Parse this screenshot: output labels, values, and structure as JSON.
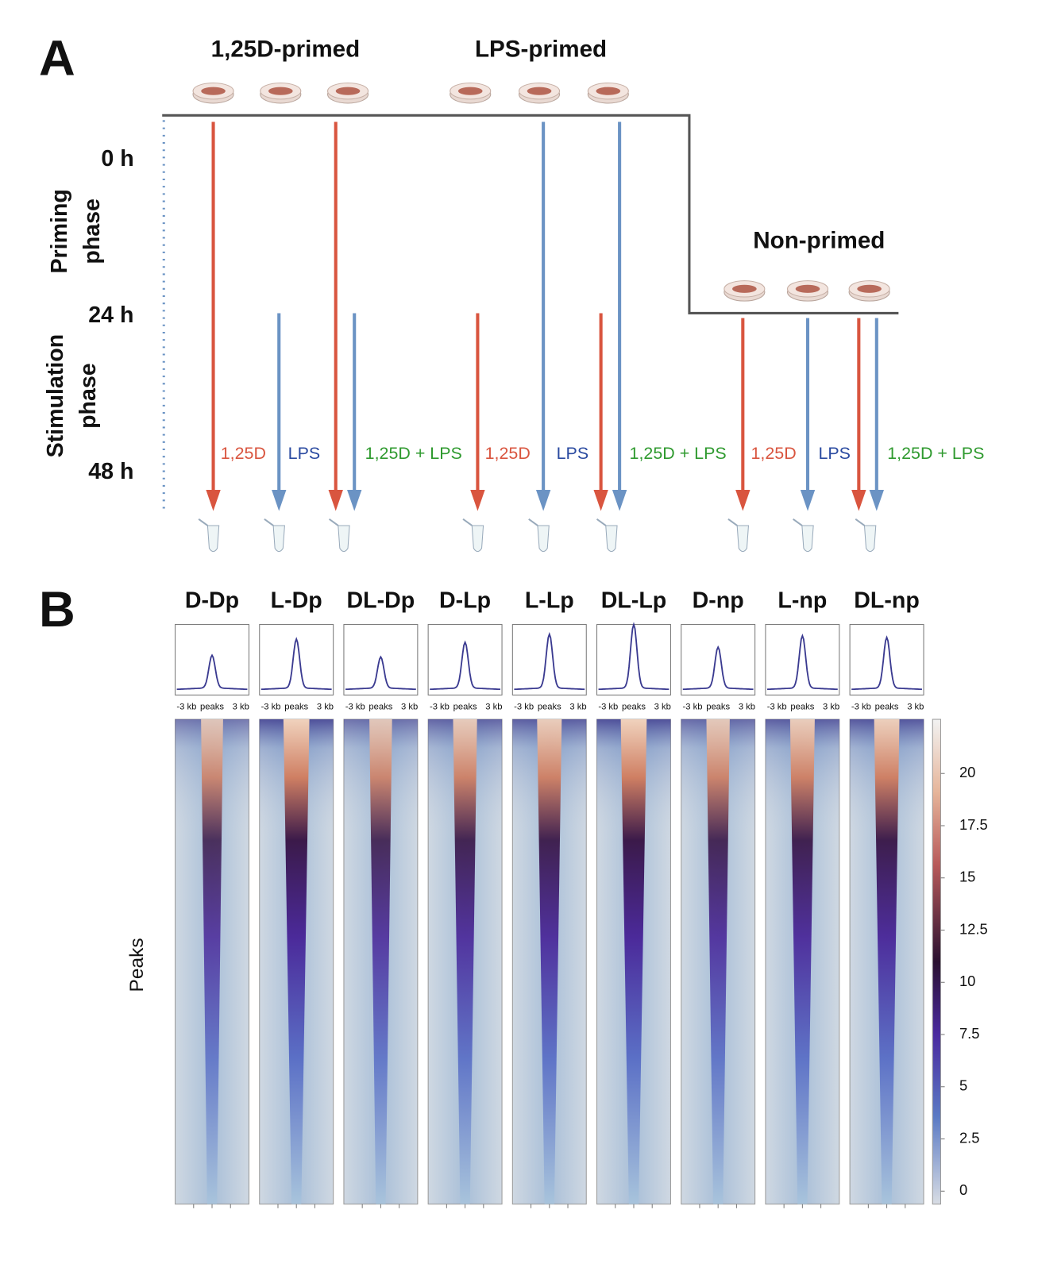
{
  "panel_a": {
    "label": "A",
    "groups": [
      "1,25D-primed",
      "LPS-primed",
      "Non-primed"
    ],
    "times": [
      "0 h",
      "24 h",
      "48 h"
    ],
    "phases": [
      [
        "Priming",
        "phase"
      ],
      [
        "Stimulation",
        "phase"
      ]
    ],
    "treatments": [
      "1,25D",
      "LPS",
      "1,25D + LPS"
    ]
  },
  "panel_b": {
    "label": "B",
    "samples": [
      "D-Dp",
      "L-Dp",
      "DL-Dp",
      "D-Lp",
      "L-Lp",
      "DL-Lp",
      "D-np",
      "L-np",
      "DL-np"
    ],
    "x_labels": [
      "-3 kb",
      "peaks",
      "3 kb"
    ],
    "y_label": "Peaks",
    "colorbar_ticks": [
      0,
      2.5,
      5,
      7.5,
      10,
      12.5,
      15,
      17.5,
      20
    ]
  }
}
